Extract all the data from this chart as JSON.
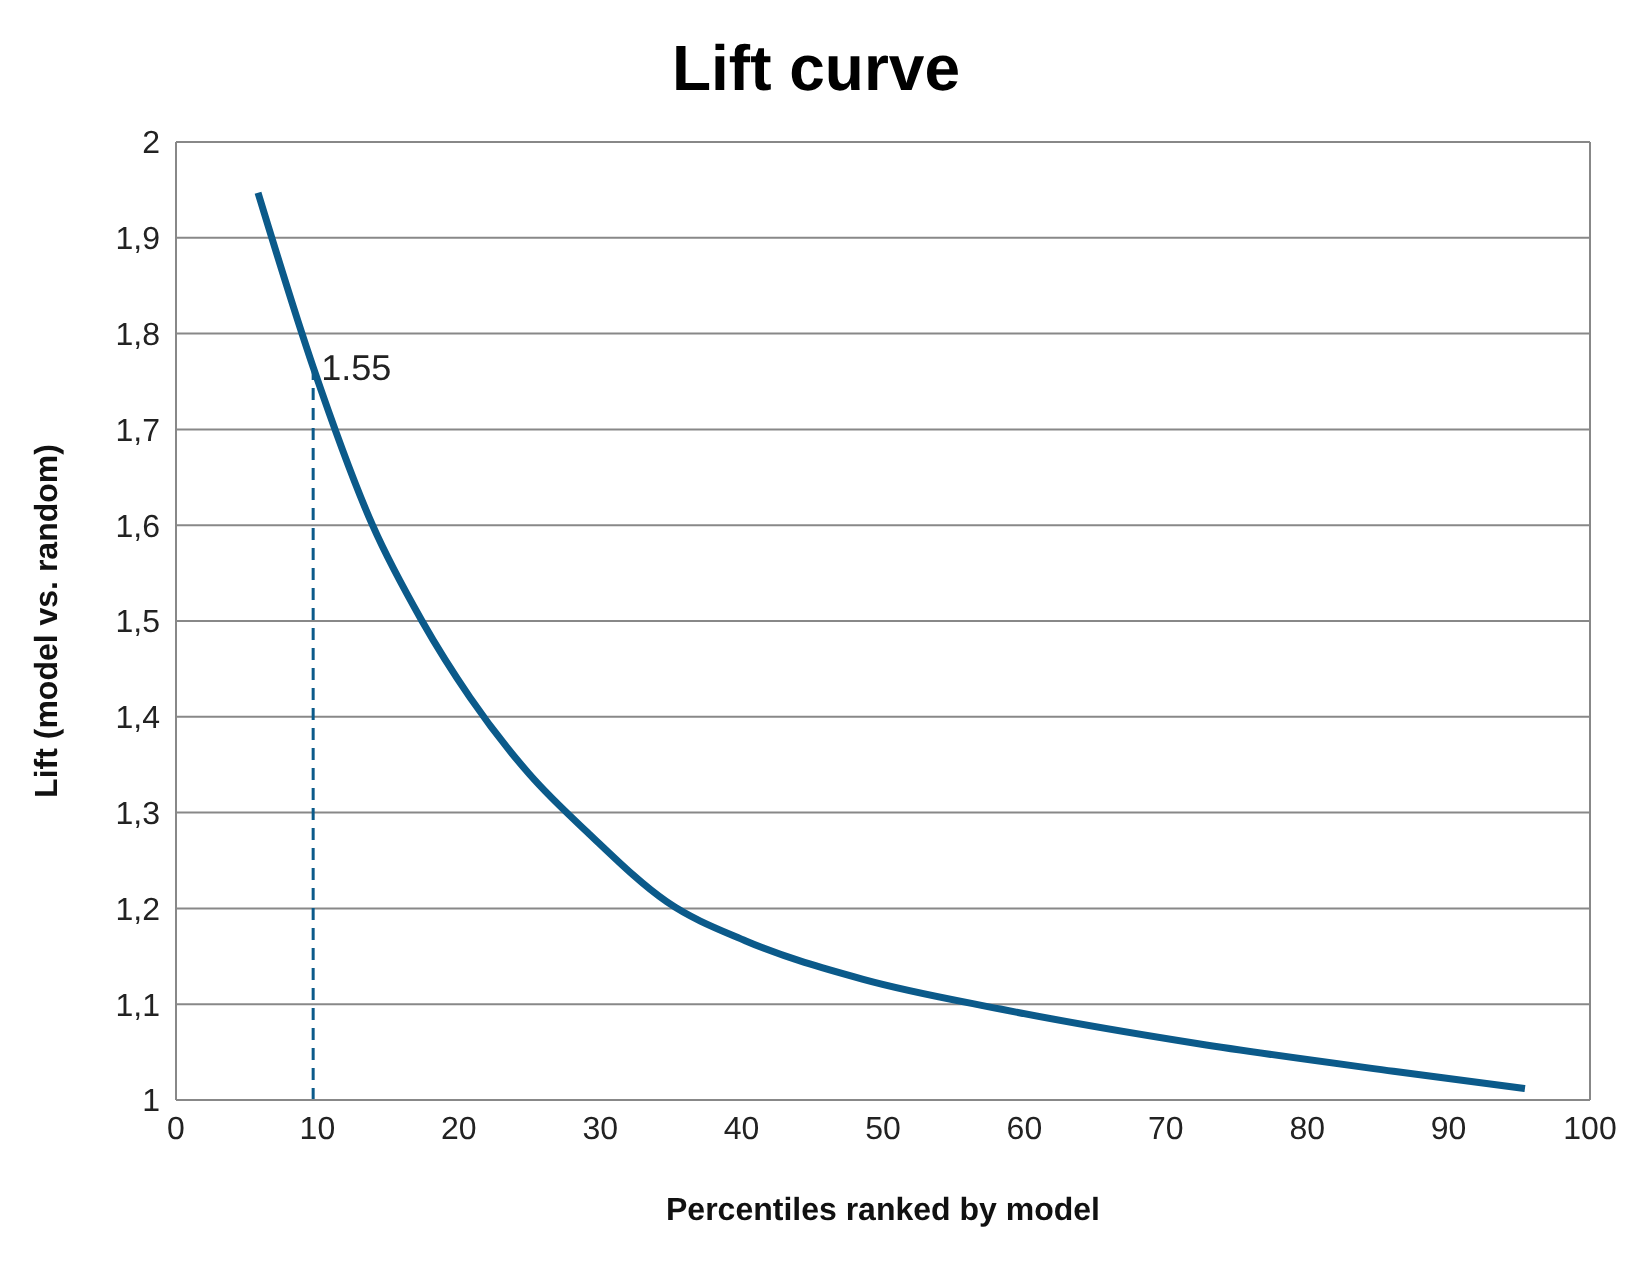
{
  "chart_data": {
    "type": "line",
    "title": "Lift curve",
    "xlabel": "Percentiles ranked by model",
    "ylabel": "Lift (model vs. random)",
    "xlim": [
      0,
      100
    ],
    "xticks": [
      0,
      10,
      20,
      30,
      40,
      50,
      60,
      70,
      80,
      90,
      100
    ],
    "ylim": [
      1,
      2
    ],
    "yticks": [
      {
        "value": 1,
        "label": "1"
      },
      {
        "value": 1.1,
        "label": "1,1"
      },
      {
        "value": 1.2,
        "label": "1,2"
      },
      {
        "value": 1.3,
        "label": "1,3"
      },
      {
        "value": 1.4,
        "label": "1,4"
      },
      {
        "value": 1.5,
        "label": "1,5"
      },
      {
        "value": 1.6,
        "label": "1,6"
      },
      {
        "value": 1.7,
        "label": "1,7"
      },
      {
        "value": 1.8,
        "label": "1,8"
      },
      {
        "value": 1.9,
        "label": "1,9"
      },
      {
        "value": 2,
        "label": "2"
      }
    ],
    "grid": "y",
    "marker": "none",
    "series": [
      {
        "color": "#0b5a8a",
        "line_style": "solid",
        "x": [
          5.8,
          9.7,
          13.9,
          17.4,
          20.8,
          25,
          29.2,
          34.7,
          40.3,
          48.6,
          58.3,
          72.2,
          86.1,
          95.4
        ],
        "values": [
          1.947,
          1.765,
          1.6,
          1.5,
          1.42,
          1.34,
          1.278,
          1.207,
          1.166,
          1.126,
          1.095,
          1.059,
          1.03,
          1.012
        ]
      },
      {
        "color": "#0b5a8a",
        "line_style": "dashed",
        "x": [
          9.7,
          9.7
        ],
        "values": [
          1,
          1.765
        ]
      }
    ],
    "annotations": [
      {
        "text": "1.55",
        "x": 9.7,
        "y": 1.765
      }
    ]
  }
}
